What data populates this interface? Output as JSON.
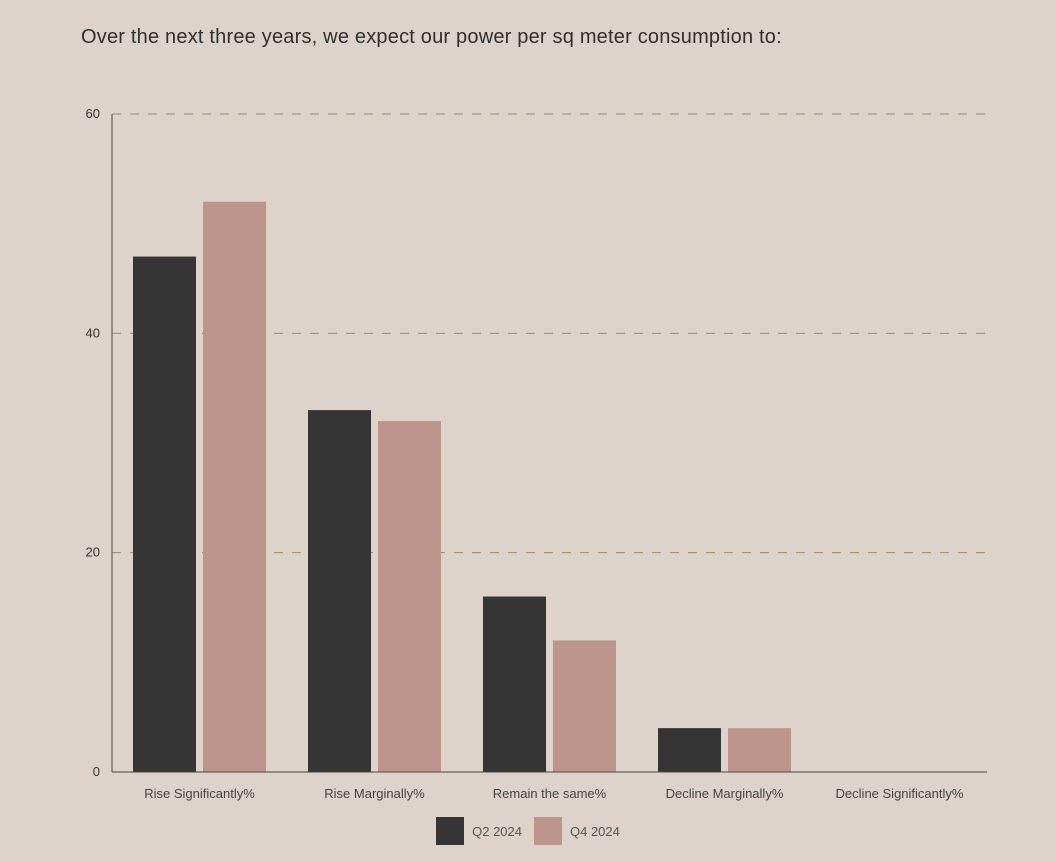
{
  "chart_data": {
    "type": "bar",
    "title": "Over the next three years, we expect our power per sq meter consumption to:",
    "xlabel": "",
    "ylabel": "",
    "categories": [
      "Rise Significantly%",
      "Rise Marginally%",
      "Remain the same%",
      "Decline Marginally%",
      "Decline Significantly%"
    ],
    "series": [
      {
        "name": "Q2 2024",
        "values": [
          47,
          33,
          16,
          4,
          0
        ],
        "color": "#353535"
      },
      {
        "name": "Q4 2024",
        "values": [
          52,
          32,
          12,
          4,
          0
        ],
        "color": "#bd958b"
      }
    ],
    "ylim": [
      0,
      60
    ],
    "yticks": [
      0,
      20,
      40,
      60
    ],
    "grid": "horizontal dashed",
    "grid_color": "#a08c5f",
    "axis_color": "#4a4a3a",
    "legend_position": "bottom-center"
  }
}
